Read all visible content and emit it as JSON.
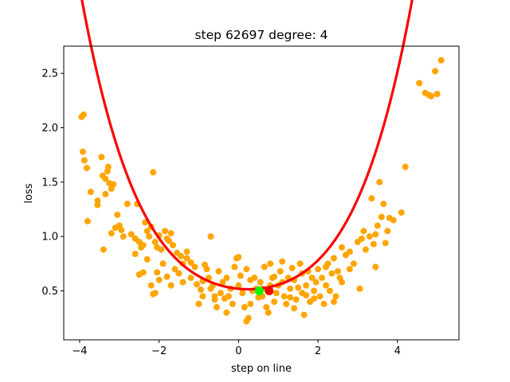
{
  "chart_data": {
    "type": "scatter",
    "title": "step 62697    degree: 4",
    "xlabel": "step on line",
    "ylabel": "loss",
    "xlim": [
      -4.4,
      5.55
    ],
    "ylim": [
      0.05,
      2.75
    ],
    "xticks": [
      -4,
      -2,
      0,
      2,
      4
    ],
    "yticks": [
      0.5,
      1.0,
      1.5,
      2.0,
      2.5
    ],
    "xtick_labels": [
      "−4",
      "−2",
      "0",
      "2",
      "4"
    ],
    "ytick_labels": [
      "0.5",
      "1.0",
      "1.5",
      "2.0",
      "2.5"
    ],
    "grid": false,
    "colors": {
      "points": "#ffa500",
      "fit": "#ff0000",
      "green_marker": "#00ff00",
      "red_marker": "#ff0000"
    },
    "fit_polynomial": {
      "degree": 4,
      "x_range": [
        -3.95,
        5.1
      ],
      "coefficients_desc": [
        0.00485,
        -0.00385,
        0.0713,
        -0.0352,
        0.5194
      ]
    },
    "markers": [
      {
        "name": "green",
        "x": 0.52,
        "y": 0.5
      },
      {
        "name": "red",
        "x": 0.77,
        "y": 0.5
      }
    ],
    "points": [
      [
        -3.95,
        2.1
      ],
      [
        -3.9,
        2.12
      ],
      [
        -3.92,
        1.78
      ],
      [
        -3.88,
        1.7
      ],
      [
        -3.82,
        1.63
      ],
      [
        -3.8,
        1.14
      ],
      [
        -3.72,
        1.41
      ],
      [
        -3.55,
        1.33
      ],
      [
        -3.55,
        1.29
      ],
      [
        -3.45,
        1.73
      ],
      [
        -3.42,
        1.56
      ],
      [
        -3.35,
        1.53
      ],
      [
        -3.3,
        1.6
      ],
      [
        -3.28,
        1.64
      ],
      [
        -3.25,
        1.49
      ],
      [
        -3.2,
        1.44
      ],
      [
        -3.15,
        1.48
      ],
      [
        -3.35,
        1.39
      ],
      [
        -3.4,
        0.88
      ],
      [
        -3.2,
        1.03
      ],
      [
        -3.1,
        1.08
      ],
      [
        -3.0,
        1.1
      ],
      [
        -3.05,
        1.2
      ],
      [
        -2.95,
        1.06
      ],
      [
        -2.8,
        1.3
      ],
      [
        -2.9,
        1.0
      ],
      [
        -2.7,
        1.02
      ],
      [
        -2.6,
        0.98
      ],
      [
        -2.55,
        1.3
      ],
      [
        -2.5,
        0.95
      ],
      [
        -2.45,
        0.9
      ],
      [
        -2.4,
        0.92
      ],
      [
        -2.35,
        1.13
      ],
      [
        -2.3,
        1.05
      ],
      [
        -2.25,
        1.0
      ],
      [
        -2.2,
        1.09
      ],
      [
        -2.15,
        1.59
      ],
      [
        -2.1,
        0.95
      ],
      [
        -2.05,
        0.9
      ],
      [
        -2.0,
        1.01
      ],
      [
        -1.95,
        0.88
      ],
      [
        -1.85,
        1.05
      ],
      [
        -1.8,
        0.98
      ],
      [
        -1.75,
        0.96
      ],
      [
        -1.7,
        1.03
      ],
      [
        -1.65,
        0.92
      ],
      [
        -1.55,
        0.85
      ],
      [
        -1.45,
        0.82
      ],
      [
        -1.3,
        0.86
      ],
      [
        -1.2,
        0.76
      ],
      [
        -0.7,
        1.0
      ],
      [
        -2.6,
        0.84
      ],
      [
        -2.5,
        0.65
      ],
      [
        -2.4,
        0.67
      ],
      [
        -2.3,
        0.79
      ],
      [
        -2.2,
        0.55
      ],
      [
        -2.15,
        0.47
      ],
      [
        -2.1,
        0.48
      ],
      [
        -2.05,
        0.67
      ],
      [
        -2.0,
        0.6
      ],
      [
        -1.9,
        0.75
      ],
      [
        -1.8,
        0.63
      ],
      [
        -1.7,
        0.55
      ],
      [
        -1.6,
        0.7
      ],
      [
        -1.5,
        0.66
      ],
      [
        -1.4,
        0.58
      ],
      [
        -1.3,
        0.8
      ],
      [
        -1.2,
        0.62
      ],
      [
        -1.1,
        0.72
      ],
      [
        -1.05,
        0.56
      ],
      [
        -1.0,
        0.38
      ],
      [
        -0.95,
        0.51
      ],
      [
        -0.9,
        0.45
      ],
      [
        -0.85,
        0.74
      ],
      [
        -0.8,
        0.7
      ],
      [
        -0.75,
        0.62
      ],
      [
        -0.7,
        0.52
      ],
      [
        -0.65,
        0.55
      ],
      [
        -0.6,
        0.42
      ],
      [
        -0.55,
        0.35
      ],
      [
        -0.5,
        0.68
      ],
      [
        -0.45,
        0.48
      ],
      [
        -0.4,
        0.58
      ],
      [
        -0.35,
        0.43
      ],
      [
        -0.3,
        0.3
      ],
      [
        -0.25,
        0.45
      ],
      [
        -0.2,
        0.52
      ],
      [
        -0.15,
        0.38
      ],
      [
        -0.1,
        0.72
      ],
      [
        -0.05,
        0.8
      ],
      [
        0.0,
        0.81
      ],
      [
        0.05,
        0.64
      ],
      [
        0.1,
        0.48
      ],
      [
        0.15,
        0.35
      ],
      [
        0.2,
        0.22
      ],
      [
        0.25,
        0.25
      ],
      [
        0.3,
        0.38
      ],
      [
        0.35,
        0.5
      ],
      [
        0.4,
        0.62
      ],
      [
        0.45,
        0.52
      ],
      [
        0.5,
        0.44
      ],
      [
        0.55,
        0.58
      ],
      [
        0.6,
        0.45
      ],
      [
        0.65,
        0.72
      ],
      [
        0.7,
        0.35
      ],
      [
        0.75,
        0.3
      ],
      [
        0.8,
        0.55
      ],
      [
        0.85,
        0.62
      ],
      [
        0.9,
        0.4
      ],
      [
        0.95,
        0.48
      ],
      [
        1.0,
        0.55
      ],
      [
        1.05,
        0.68
      ],
      [
        1.1,
        0.77
      ],
      [
        1.15,
        0.45
      ],
      [
        1.2,
        0.38
      ],
      [
        1.25,
        0.62
      ],
      [
        1.3,
        0.52
      ],
      [
        1.35,
        0.71
      ],
      [
        1.4,
        0.6
      ],
      [
        1.45,
        0.42
      ],
      [
        1.5,
        0.53
      ],
      [
        1.55,
        0.75
      ],
      [
        1.6,
        0.48
      ],
      [
        1.65,
        0.28
      ],
      [
        1.7,
        0.55
      ],
      [
        1.75,
        0.68
      ],
      [
        1.8,
        0.4
      ],
      [
        1.85,
        0.62
      ],
      [
        1.9,
        0.5
      ],
      [
        1.95,
        0.58
      ],
      [
        2.0,
        0.7
      ],
      [
        2.05,
        0.45
      ],
      [
        2.1,
        0.62
      ],
      [
        2.15,
        0.38
      ],
      [
        2.2,
        0.55
      ],
      [
        2.25,
        0.75
      ],
      [
        2.3,
        0.5
      ],
      [
        2.35,
        0.66
      ],
      [
        2.4,
        0.8
      ],
      [
        2.45,
        0.45
      ],
      [
        2.5,
        0.68
      ],
      [
        2.55,
        0.62
      ],
      [
        2.6,
        0.9
      ],
      [
        2.7,
        0.83
      ],
      [
        2.8,
        0.86
      ],
      [
        2.9,
        0.75
      ],
      [
        3.0,
        0.95
      ],
      [
        3.05,
        0.52
      ],
      [
        3.1,
        0.98
      ],
      [
        3.15,
        1.05
      ],
      [
        3.2,
        0.88
      ],
      [
        3.3,
        1.0
      ],
      [
        3.35,
        1.35
      ],
      [
        3.4,
        0.93
      ],
      [
        3.45,
        1.02
      ],
      [
        3.5,
        1.1
      ],
      [
        3.55,
        1.5
      ],
      [
        3.6,
        1.18
      ],
      [
        3.65,
        1.3
      ],
      [
        3.7,
        0.94
      ],
      [
        3.75,
        1.05
      ],
      [
        3.8,
        1.17
      ],
      [
        3.9,
        1.15
      ],
      [
        4.1,
        1.22
      ],
      [
        4.2,
        1.64
      ],
      [
        3.45,
        0.72
      ],
      [
        4.55,
        2.41
      ],
      [
        4.7,
        2.32
      ],
      [
        4.8,
        2.3
      ],
      [
        4.85,
        2.29
      ],
      [
        4.95,
        2.52
      ],
      [
        5.0,
        2.31
      ],
      [
        5.1,
        2.62
      ],
      [
        -0.6,
        0.45
      ],
      [
        0.3,
        0.6
      ],
      [
        0.9,
        0.63
      ],
      [
        1.3,
        0.44
      ],
      [
        1.6,
        0.66
      ],
      [
        1.9,
        0.43
      ],
      [
        2.2,
        0.72
      ],
      [
        0.0,
        0.55
      ],
      [
        -0.3,
        0.62
      ],
      [
        0.6,
        0.52
      ],
      [
        1.1,
        0.58
      ],
      [
        1.7,
        0.46
      ],
      [
        2.6,
        0.58
      ],
      [
        2.8,
        0.7
      ],
      [
        -1.4,
        0.75
      ],
      [
        -0.9,
        0.59
      ],
      [
        0.2,
        0.7
      ],
      [
        0.8,
        0.75
      ],
      [
        1.4,
        0.34
      ],
      [
        2.4,
        0.4
      ]
    ]
  }
}
